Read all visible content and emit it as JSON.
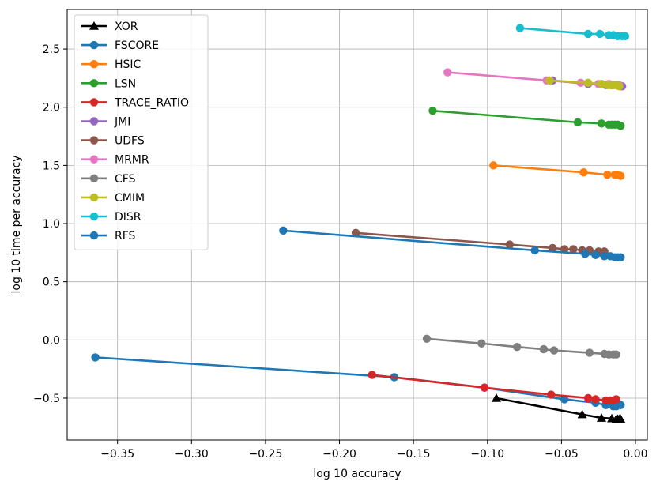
{
  "chart_data": {
    "type": "line",
    "title": "",
    "xlabel": "log 10 accuracy",
    "ylabel": "log 10 time per accuracy",
    "xlim": [
      -0.384,
      0.008
    ],
    "ylim": [
      -0.86,
      2.84
    ],
    "grid": true,
    "legend_position": "top-left",
    "x_ticks": [
      {
        "value": -0.35,
        "label": "−0.35"
      },
      {
        "value": -0.3,
        "label": "−0.30"
      },
      {
        "value": -0.25,
        "label": "−0.25"
      },
      {
        "value": -0.2,
        "label": "−0.20"
      },
      {
        "value": -0.15,
        "label": "−0.15"
      },
      {
        "value": -0.1,
        "label": "−0.10"
      },
      {
        "value": -0.05,
        "label": "−0.05"
      },
      {
        "value": 0.0,
        "label": "0.00"
      }
    ],
    "y_ticks": [
      {
        "value": -0.5,
        "label": "−0.5"
      },
      {
        "value": 0.0,
        "label": "0.0"
      },
      {
        "value": 0.5,
        "label": "0.5"
      },
      {
        "value": 1.0,
        "label": "1.0"
      },
      {
        "value": 1.5,
        "label": "1.5"
      },
      {
        "value": 2.0,
        "label": "2.0"
      },
      {
        "value": 2.5,
        "label": "2.5"
      }
    ],
    "series": [
      {
        "name": "XOR",
        "color": "#000000",
        "marker": "triangle",
        "x": [
          -0.094,
          -0.036,
          -0.023,
          -0.016,
          -0.013,
          -0.012,
          -0.011,
          -0.01
        ],
        "y": [
          -0.5,
          -0.64,
          -0.67,
          -0.675,
          -0.68,
          -0.68,
          -0.68,
          -0.68
        ]
      },
      {
        "name": "FSCORE",
        "color": "#1f77b4",
        "marker": "circle",
        "x": [
          -0.365,
          -0.163,
          -0.102,
          -0.048,
          -0.027,
          -0.02,
          -0.015,
          -0.013,
          -0.01
        ],
        "y": [
          -0.15,
          -0.32,
          -0.41,
          -0.51,
          -0.54,
          -0.56,
          -0.57,
          -0.57,
          -0.56
        ]
      },
      {
        "name": "HSIC",
        "color": "#ff7f0e",
        "marker": "circle",
        "x": [
          -0.096,
          -0.035,
          -0.019,
          -0.014,
          -0.012,
          -0.01
        ],
        "y": [
          1.5,
          1.44,
          1.42,
          1.42,
          1.42,
          1.41
        ]
      },
      {
        "name": "LSN",
        "color": "#2ca02c",
        "marker": "circle",
        "x": [
          -0.137,
          -0.039,
          -0.023,
          -0.018,
          -0.016,
          -0.014,
          -0.012,
          -0.01
        ],
        "y": [
          1.97,
          1.87,
          1.86,
          1.85,
          1.85,
          1.85,
          1.85,
          1.84
        ]
      },
      {
        "name": "TRACE_RATIO",
        "color": "#d62728",
        "marker": "circle",
        "x": [
          -0.178,
          -0.102,
          -0.057,
          -0.032,
          -0.027,
          -0.02,
          -0.017,
          -0.015,
          -0.013
        ],
        "y": [
          -0.3,
          -0.41,
          -0.47,
          -0.5,
          -0.51,
          -0.52,
          -0.52,
          -0.52,
          -0.51
        ]
      },
      {
        "name": "JMI",
        "color": "#9467bd",
        "marker": "circle",
        "x": [
          -0.056,
          -0.032,
          -0.02,
          -0.016,
          -0.013,
          -0.01,
          -0.009
        ],
        "y": [
          2.23,
          2.2,
          2.19,
          2.19,
          2.19,
          2.18,
          2.18
        ]
      },
      {
        "name": "UDFS",
        "color": "#8c564b",
        "marker": "circle",
        "x": [
          -0.189,
          -0.085,
          -0.056,
          -0.048,
          -0.042,
          -0.036,
          -0.031,
          -0.025,
          -0.021
        ],
        "y": [
          0.92,
          0.82,
          0.79,
          0.78,
          0.78,
          0.77,
          0.77,
          0.76,
          0.76
        ]
      },
      {
        "name": "MRMR",
        "color": "#e377c2",
        "marker": "circle",
        "x": [
          -0.127,
          -0.06,
          -0.037,
          -0.025,
          -0.018,
          -0.015,
          -0.013,
          -0.011
        ],
        "y": [
          2.3,
          2.23,
          2.21,
          2.2,
          2.2,
          2.19,
          2.19,
          2.19
        ]
      },
      {
        "name": "CFS",
        "color": "#7f7f7f",
        "marker": "circle",
        "x": [
          -0.141,
          -0.104,
          -0.08,
          -0.062,
          -0.055,
          -0.031,
          -0.021,
          -0.018,
          -0.015,
          -0.013
        ],
        "y": [
          0.01,
          -0.03,
          -0.06,
          -0.08,
          -0.09,
          -0.11,
          -0.12,
          -0.125,
          -0.125,
          -0.125
        ]
      },
      {
        "name": "CMIM",
        "color": "#bcbd22",
        "marker": "circle",
        "x": [
          -0.058,
          -0.032,
          -0.023,
          -0.019,
          -0.017,
          -0.015,
          -0.013,
          -0.011
        ],
        "y": [
          2.23,
          2.21,
          2.2,
          2.19,
          2.19,
          2.19,
          2.19,
          2.18
        ]
      },
      {
        "name": "DISR",
        "color": "#17becf",
        "marker": "circle",
        "x": [
          -0.078,
          -0.032,
          -0.024,
          -0.018,
          -0.015,
          -0.012,
          -0.009,
          -0.007
        ],
        "y": [
          2.68,
          2.63,
          2.63,
          2.62,
          2.62,
          2.61,
          2.61,
          2.61
        ]
      },
      {
        "name": "RFS",
        "color": "#1f77b4",
        "marker": "circle",
        "x": [
          -0.238,
          -0.068,
          -0.034,
          -0.027,
          -0.021,
          -0.017,
          -0.014,
          -0.012,
          -0.01
        ],
        "y": [
          0.94,
          0.77,
          0.74,
          0.73,
          0.72,
          0.72,
          0.71,
          0.71,
          0.71
        ]
      }
    ]
  }
}
